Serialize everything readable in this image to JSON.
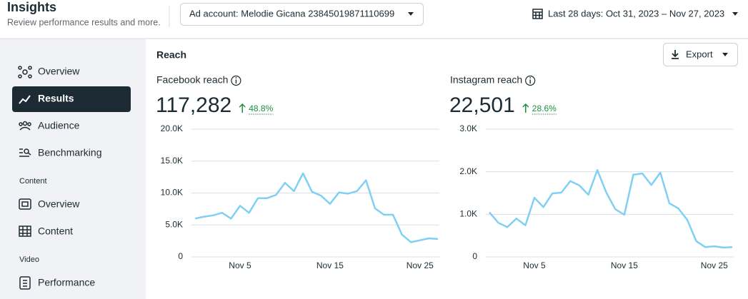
{
  "header": {
    "title": "Insights",
    "subtitle": "Review performance results and more.",
    "ad_account": "Ad account: Melodie Gicana 23845019871110699",
    "date_range": "Last 28 days: Oct 31, 2023 – Nov 27, 2023"
  },
  "sidebar": {
    "items": [
      "Overview",
      "Results",
      "Audience",
      "Benchmarking"
    ],
    "sections": [
      {
        "label": "Content",
        "items": [
          "Overview",
          "Content"
        ]
      },
      {
        "label": "Video",
        "items": [
          "Performance"
        ]
      }
    ]
  },
  "section_title": "Reach",
  "export_button": "Export",
  "chart_data": [
    {
      "type": "line",
      "title": "Facebook reach",
      "total": "117,282",
      "change": "48.8%",
      "color": "#80d0f4",
      "grid": true,
      "categories": [
        null,
        null,
        null,
        null,
        null,
        "Nov 5",
        null,
        null,
        null,
        null,
        null,
        null,
        null,
        null,
        null,
        "Nov 15",
        null,
        null,
        null,
        null,
        null,
        null,
        null,
        null,
        null,
        "Nov 25",
        null,
        null
      ],
      "values": [
        6000,
        6300,
        6500,
        6900,
        6000,
        8000,
        6900,
        9200,
        9200,
        9700,
        11600,
        10300,
        13100,
        10200,
        9600,
        8300,
        10100,
        9900,
        10300,
        12000,
        7600,
        6600,
        6600,
        3500,
        2300,
        2600,
        2900,
        2800
      ],
      "ylim": [
        0,
        20000
      ],
      "yticks": [
        {
          "value": 0,
          "label": "0"
        },
        {
          "value": 5000,
          "label": "5.0K"
        },
        {
          "value": 10000,
          "label": "10.0K"
        },
        {
          "value": 15000,
          "label": "15.0K"
        },
        {
          "value": 20000,
          "label": "20.0K"
        }
      ]
    },
    {
      "type": "line",
      "title": "Instagram reach",
      "total": "22,501",
      "change": "28.6%",
      "color": "#80d0f4",
      "grid": true,
      "categories": [
        null,
        null,
        null,
        null,
        null,
        "Nov 5",
        null,
        null,
        null,
        null,
        null,
        null,
        null,
        null,
        null,
        "Nov 15",
        null,
        null,
        null,
        null,
        null,
        null,
        null,
        null,
        null,
        "Nov 25",
        null,
        null
      ],
      "values": [
        1050,
        800,
        700,
        900,
        740,
        1390,
        1170,
        1490,
        1510,
        1780,
        1680,
        1460,
        2040,
        1510,
        1120,
        990,
        1930,
        1960,
        1690,
        1980,
        1260,
        1140,
        870,
        370,
        230,
        250,
        220,
        230
      ],
      "ylim": [
        0,
        3000
      ],
      "yticks": [
        {
          "value": 0,
          "label": "0"
        },
        {
          "value": 1000,
          "label": "1.0K"
        },
        {
          "value": 2000,
          "label": "2.0K"
        },
        {
          "value": 3000,
          "label": "3.0K"
        }
      ]
    }
  ]
}
